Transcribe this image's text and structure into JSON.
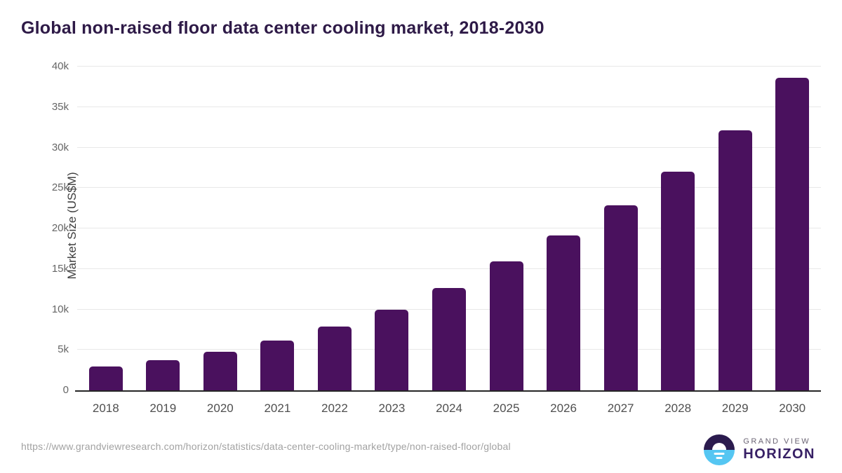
{
  "header": {
    "title": "Global non-raised floor data center cooling market, 2018-2030"
  },
  "chart_data": {
    "type": "bar",
    "title": "Global non-raised floor data center cooling market, 2018-2030",
    "categories": [
      "2018",
      "2019",
      "2020",
      "2021",
      "2022",
      "2023",
      "2024",
      "2025",
      "2026",
      "2027",
      "2028",
      "2029",
      "2030"
    ],
    "values": [
      2950,
      3750,
      4800,
      6150,
      7850,
      9950,
      12600,
      15950,
      19100,
      22850,
      27000,
      32100,
      38600
    ],
    "xlabel": "",
    "ylabel": "Market Size (US$M)",
    "ylim": [
      0,
      40000
    ],
    "yticks": [
      0,
      5000,
      10000,
      15000,
      20000,
      25000,
      30000,
      35000,
      40000
    ],
    "ytick_labels": [
      "0",
      "5k",
      "10k",
      "15k",
      "20k",
      "25k",
      "30k",
      "35k",
      "40k"
    ],
    "grid": "horizontal",
    "legend": "none",
    "bar_color": "#4a115e"
  },
  "footer": {
    "source_url": "https://www.grandviewresearch.com/horizon/statistics/data-center-cooling-market/type/non-raised-floor/global",
    "brand": {
      "line1": "GRAND VIEW",
      "line2": "HORIZON"
    }
  },
  "colors": {
    "bar": "#4a115e",
    "title": "#2e1a47",
    "axis_line": "#262626",
    "gridline": "#e8e8e8",
    "ytick_text": "#666666",
    "xtick_text": "#4f4f4f",
    "url_text": "#a2a2a2",
    "logo_navy": "#2b1b4e",
    "logo_blue": "#55c6f2"
  }
}
